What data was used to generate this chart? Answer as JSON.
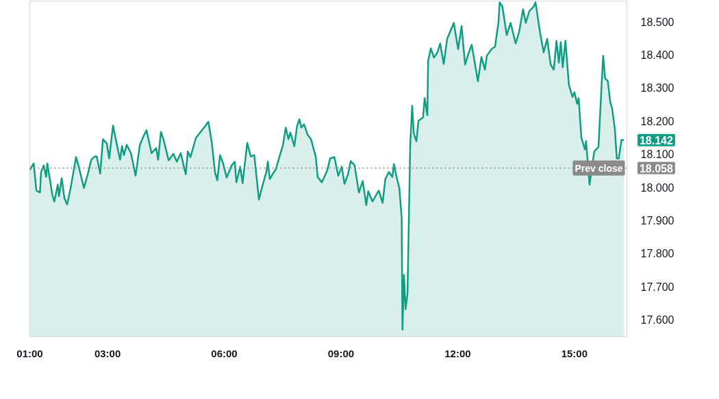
{
  "chart_data": {
    "type": "area",
    "x": [
      1.0,
      1.1,
      1.17,
      1.26,
      1.29,
      1.36,
      1.42,
      1.45,
      1.58,
      1.63,
      1.72,
      1.75,
      1.82,
      1.89,
      1.96,
      2.05,
      2.19,
      2.28,
      2.39,
      2.49,
      2.58,
      2.67,
      2.72,
      2.81,
      2.88,
      2.98,
      3.04,
      3.14,
      3.21,
      3.32,
      3.37,
      3.42,
      3.49,
      3.6,
      3.72,
      3.83,
      3.92,
      4.0,
      4.13,
      4.25,
      4.3,
      4.37,
      4.44,
      4.57,
      4.69,
      4.78,
      4.88,
      5.01,
      5.06,
      5.13,
      5.27,
      5.45,
      5.52,
      5.59,
      5.68,
      5.76,
      5.82,
      5.89,
      5.97,
      6.06,
      6.19,
      6.27,
      6.31,
      6.41,
      6.47,
      6.59,
      6.68,
      6.77,
      6.89,
      6.98,
      7.08,
      7.12,
      7.17,
      7.33,
      7.42,
      7.51,
      7.58,
      7.65,
      7.7,
      7.8,
      7.87,
      7.93,
      7.98,
      8.05,
      8.14,
      8.23,
      8.3,
      8.35,
      8.4,
      8.51,
      8.65,
      8.72,
      8.83,
      8.93,
      9.02,
      9.09,
      9.18,
      9.25,
      9.35,
      9.46,
      9.56,
      9.65,
      9.7,
      9.81,
      9.97,
      10.07,
      10.14,
      10.23,
      10.32,
      10.36,
      10.44,
      10.5,
      10.56,
      10.58,
      10.62,
      10.66,
      10.71,
      10.78,
      10.83,
      10.87,
      10.94,
      10.99,
      11.11,
      11.15,
      11.22,
      11.24,
      11.31,
      11.39,
      11.48,
      11.55,
      11.64,
      11.73,
      11.82,
      11.9,
      12.01,
      12.1,
      12.19,
      12.27,
      12.36,
      12.52,
      12.61,
      12.7,
      12.75,
      12.87,
      12.96,
      13.05,
      13.08,
      13.15,
      13.26,
      13.36,
      13.49,
      13.58,
      13.68,
      13.75,
      13.84,
      13.95,
      14.0,
      14.12,
      14.21,
      14.3,
      14.39,
      14.47,
      14.54,
      14.6,
      14.65,
      14.7,
      14.77,
      14.86,
      14.95,
      15.0,
      15.07,
      15.11,
      15.18,
      15.27,
      15.3,
      15.39,
      15.51,
      15.62,
      15.69,
      15.74,
      15.79,
      15.86,
      15.92,
      15.97,
      16.04,
      16.09,
      16.14,
      16.21,
      16.27
    ],
    "series": [
      {
        "color": "#0f9d84",
        "values": [
          18.052,
          18.072,
          17.99,
          17.984,
          18.046,
          18.066,
          18.031,
          18.072,
          17.977,
          17.957,
          18.008,
          17.973,
          18.027,
          17.967,
          17.948,
          17.998,
          18.091,
          18.052,
          17.998,
          18.039,
          18.083,
          18.093,
          18.093,
          18.041,
          18.145,
          18.132,
          18.087,
          18.186,
          18.145,
          18.083,
          18.124,
          18.097,
          18.128,
          18.103,
          18.035,
          18.128,
          18.153,
          18.172,
          18.103,
          18.118,
          18.083,
          18.167,
          18.143,
          18.081,
          18.101,
          18.077,
          18.103,
          18.039,
          18.108,
          18.091,
          18.149,
          18.176,
          18.186,
          18.198,
          18.134,
          18.046,
          18.021,
          18.097,
          18.072,
          18.029,
          18.066,
          18.077,
          18.015,
          18.062,
          18.012,
          18.134,
          18.093,
          18.097,
          17.963,
          18.004,
          18.046,
          18.077,
          18.025,
          18.056,
          18.093,
          18.128,
          18.18,
          18.145,
          18.165,
          18.124,
          18.184,
          18.205,
          18.18,
          18.19,
          18.159,
          18.145,
          18.114,
          18.093,
          18.031,
          18.015,
          18.052,
          18.087,
          18.091,
          18.035,
          18.062,
          18.01,
          18.039,
          18.079,
          18.066,
          17.984,
          18.019,
          17.946,
          17.988,
          17.957,
          17.99,
          17.953,
          18.025,
          18.046,
          18.031,
          18.07,
          18.025,
          17.998,
          17.907,
          17.57,
          17.736,
          17.632,
          17.68,
          18.128,
          18.246,
          18.163,
          18.139,
          18.2,
          18.211,
          18.269,
          18.217,
          18.382,
          18.419,
          18.391,
          18.407,
          18.434,
          18.372,
          18.448,
          18.473,
          18.496,
          18.417,
          18.486,
          18.37,
          18.401,
          18.43,
          18.32,
          18.393,
          18.355,
          18.397,
          18.417,
          18.424,
          18.5,
          18.558,
          18.545,
          18.459,
          18.496,
          18.434,
          18.469,
          18.537,
          18.496,
          18.531,
          18.545,
          18.558,
          18.465,
          18.407,
          18.448,
          18.37,
          18.355,
          18.442,
          18.376,
          18.438,
          18.362,
          18.442,
          18.308,
          18.273,
          18.287,
          18.252,
          18.269,
          18.149,
          18.114,
          18.139,
          18.008,
          18.108,
          18.122,
          18.287,
          18.397,
          18.329,
          18.32,
          18.258,
          18.238,
          18.176,
          18.087,
          18.087,
          18.143,
          18.142
        ]
      }
    ],
    "xlim": [
      1.0,
      16.35
    ],
    "ylim": [
      17.55,
      18.562
    ],
    "xticks": [
      {
        "value": 1,
        "label": "01:00"
      },
      {
        "value": 3,
        "label": "03:00"
      },
      {
        "value": 6,
        "label": "06:00"
      },
      {
        "value": 9,
        "label": "09:00"
      },
      {
        "value": 12,
        "label": "12:00"
      },
      {
        "value": 15,
        "label": "15:00"
      }
    ],
    "yticks": [
      {
        "value": 17.6,
        "label": "17.600"
      },
      {
        "value": 17.7,
        "label": "17.700"
      },
      {
        "value": 17.8,
        "label": "17.800"
      },
      {
        "value": 17.9,
        "label": "17.900"
      },
      {
        "value": 18.0,
        "label": "18.000"
      },
      {
        "value": 18.1,
        "label": "18.100"
      },
      {
        "value": 18.2,
        "label": "18.200"
      },
      {
        "value": 18.3,
        "label": "18.300"
      },
      {
        "value": 18.4,
        "label": "18.400"
      },
      {
        "value": 18.5,
        "label": "18.500"
      }
    ],
    "ref_lines": [
      {
        "axis": "y",
        "value": 18.058,
        "label": "Prev close",
        "color": "#8a8a8a",
        "line_style": "dotted"
      }
    ],
    "annotations": [
      {
        "text": "18.142",
        "x": 16.27,
        "y": 18.142
      },
      {
        "text": "18.058",
        "x": 16.27,
        "y": 18.058
      }
    ]
  }
}
